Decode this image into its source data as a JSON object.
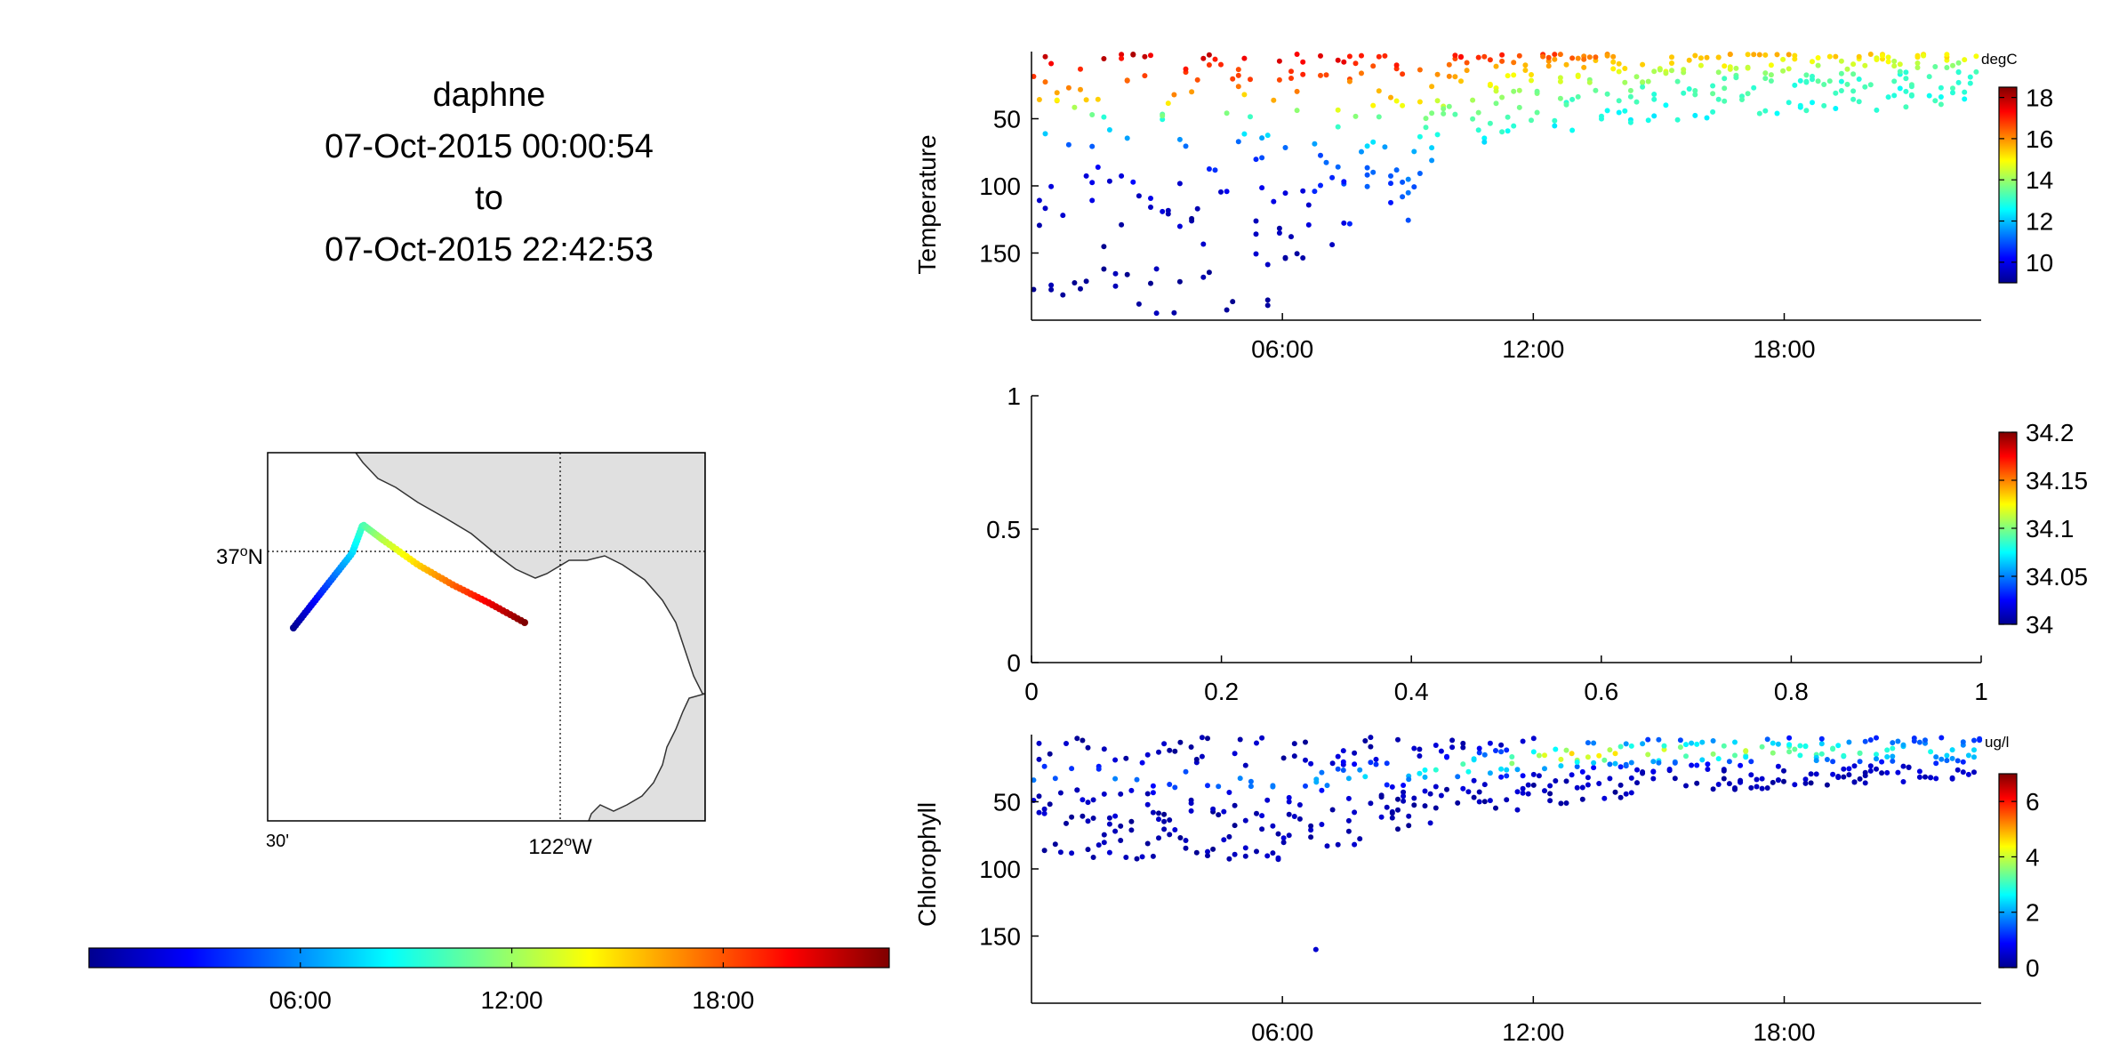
{
  "header": {
    "platform": "daphne",
    "start": "07-Oct-2015 00:00:54",
    "to_word": "to",
    "end": "07-Oct-2015 22:42:53"
  },
  "map": {
    "lat_label": "37",
    "lat_deg": "o",
    "lat_hemi": "N",
    "lon_label_left": "30'",
    "lon_label": "122",
    "lon_deg": "o",
    "lon_hemi": "W",
    "track_colormap": "jet"
  },
  "time_colorbar": {
    "ticks": [
      "06:00",
      "12:00",
      "18:00"
    ],
    "tick_hours": [
      6,
      12,
      18
    ],
    "range_hours": [
      0,
      22.71
    ]
  },
  "colors": {
    "land": "#e0e0e0",
    "coast": "#333333",
    "axis": "#000000",
    "jet": [
      "#00008f",
      "#0000ff",
      "#007fff",
      "#00ffff",
      "#7fff7f",
      "#ffff00",
      "#ff7f00",
      "#ff0000",
      "#7f0000"
    ]
  },
  "chart_data": [
    {
      "type": "scatter",
      "name": "temperature-panel",
      "ylabel": "Temperature",
      "units": "degC",
      "x_ticks": [
        "06:00",
        "12:00",
        "18:00"
      ],
      "y_ticks": [
        "50",
        "100",
        "150"
      ],
      "ylim": [
        0,
        200
      ],
      "y_reversed": true,
      "xlim_hours": [
        0,
        22.71
      ],
      "clim": [
        9,
        18.5
      ],
      "cbar_ticks": [
        "10",
        "12",
        "14",
        "16",
        "18"
      ],
      "cbar_tick_values": [
        10,
        12,
        14,
        16,
        18
      ],
      "profile": [
        {
          "hour": 0,
          "shallow": 18.0,
          "deep": 9.0,
          "maxdepth": 200,
          "thermocline": 35
        },
        {
          "hour": 6,
          "shallow": 17.8,
          "deep": 9.2,
          "maxdepth": 190,
          "thermocline": 38
        },
        {
          "hour": 9,
          "shallow": 17.5,
          "deep": 10.5,
          "maxdepth": 130,
          "thermocline": 40
        },
        {
          "hour": 11,
          "shallow": 17.2,
          "deep": 12.0,
          "maxdepth": 60,
          "thermocline": 25
        },
        {
          "hour": 14,
          "shallow": 16.5,
          "deep": 11.8,
          "maxdepth": 55,
          "thermocline": 20
        },
        {
          "hour": 18,
          "shallow": 15.8,
          "deep": 12.5,
          "maxdepth": 45,
          "thermocline": 20
        },
        {
          "hour": 22.7,
          "shallow": 15.5,
          "deep": 12.8,
          "maxdepth": 40,
          "thermocline": 15
        }
      ]
    },
    {
      "type": "scatter",
      "name": "salinity-panel",
      "ylabel": "",
      "units": "",
      "x_ticks": [
        "0",
        "0.2",
        "0.4",
        "0.6",
        "0.8",
        "1"
      ],
      "x_tick_values": [
        0,
        0.2,
        0.4,
        0.6,
        0.8,
        1
      ],
      "y_ticks": [
        "0",
        "0.5",
        "1"
      ],
      "y_tick_values": [
        0,
        0.5,
        1
      ],
      "xlim": [
        0,
        1
      ],
      "ylim": [
        0,
        1
      ],
      "clim": [
        34,
        34.2
      ],
      "cbar_ticks": [
        "34",
        "34.05",
        "34.1",
        "34.15",
        "34.2"
      ],
      "cbar_tick_values": [
        34,
        34.05,
        34.1,
        34.15,
        34.2
      ],
      "points": []
    },
    {
      "type": "scatter",
      "name": "chlorophyll-panel",
      "ylabel": "Chlorophyll",
      "units": "ug/l",
      "x_ticks": [
        "06:00",
        "12:00",
        "18:00"
      ],
      "y_ticks": [
        "50",
        "100",
        "150"
      ],
      "ylim": [
        0,
        200
      ],
      "y_reversed": true,
      "xlim_hours": [
        0,
        22.71
      ],
      "clim": [
        0,
        7
      ],
      "cbar_ticks": [
        "0",
        "2",
        "4",
        "6"
      ],
      "cbar_tick_values": [
        0,
        2,
        4,
        6
      ],
      "profile": [
        {
          "hour": 0,
          "peak": 1.8,
          "peakdepth": 30,
          "maxdepth": 90
        },
        {
          "hour": 6,
          "peak": 1.8,
          "peakdepth": 35,
          "maxdepth": 95
        },
        {
          "hour": 10,
          "peak": 3.0,
          "peakdepth": 25,
          "maxdepth": 60
        },
        {
          "hour": 13,
          "peak": 4.5,
          "peakdepth": 15,
          "maxdepth": 50
        },
        {
          "hour": 16,
          "peak": 4.0,
          "peakdepth": 12,
          "maxdepth": 40
        },
        {
          "hour": 20,
          "peak": 3.0,
          "peakdepth": 12,
          "maxdepth": 35
        },
        {
          "hour": 22.7,
          "peak": 2.5,
          "peakdepth": 12,
          "maxdepth": 30
        }
      ],
      "outliers": [
        {
          "hour": 6.8,
          "depth": 160,
          "value": 0.5
        }
      ]
    }
  ]
}
